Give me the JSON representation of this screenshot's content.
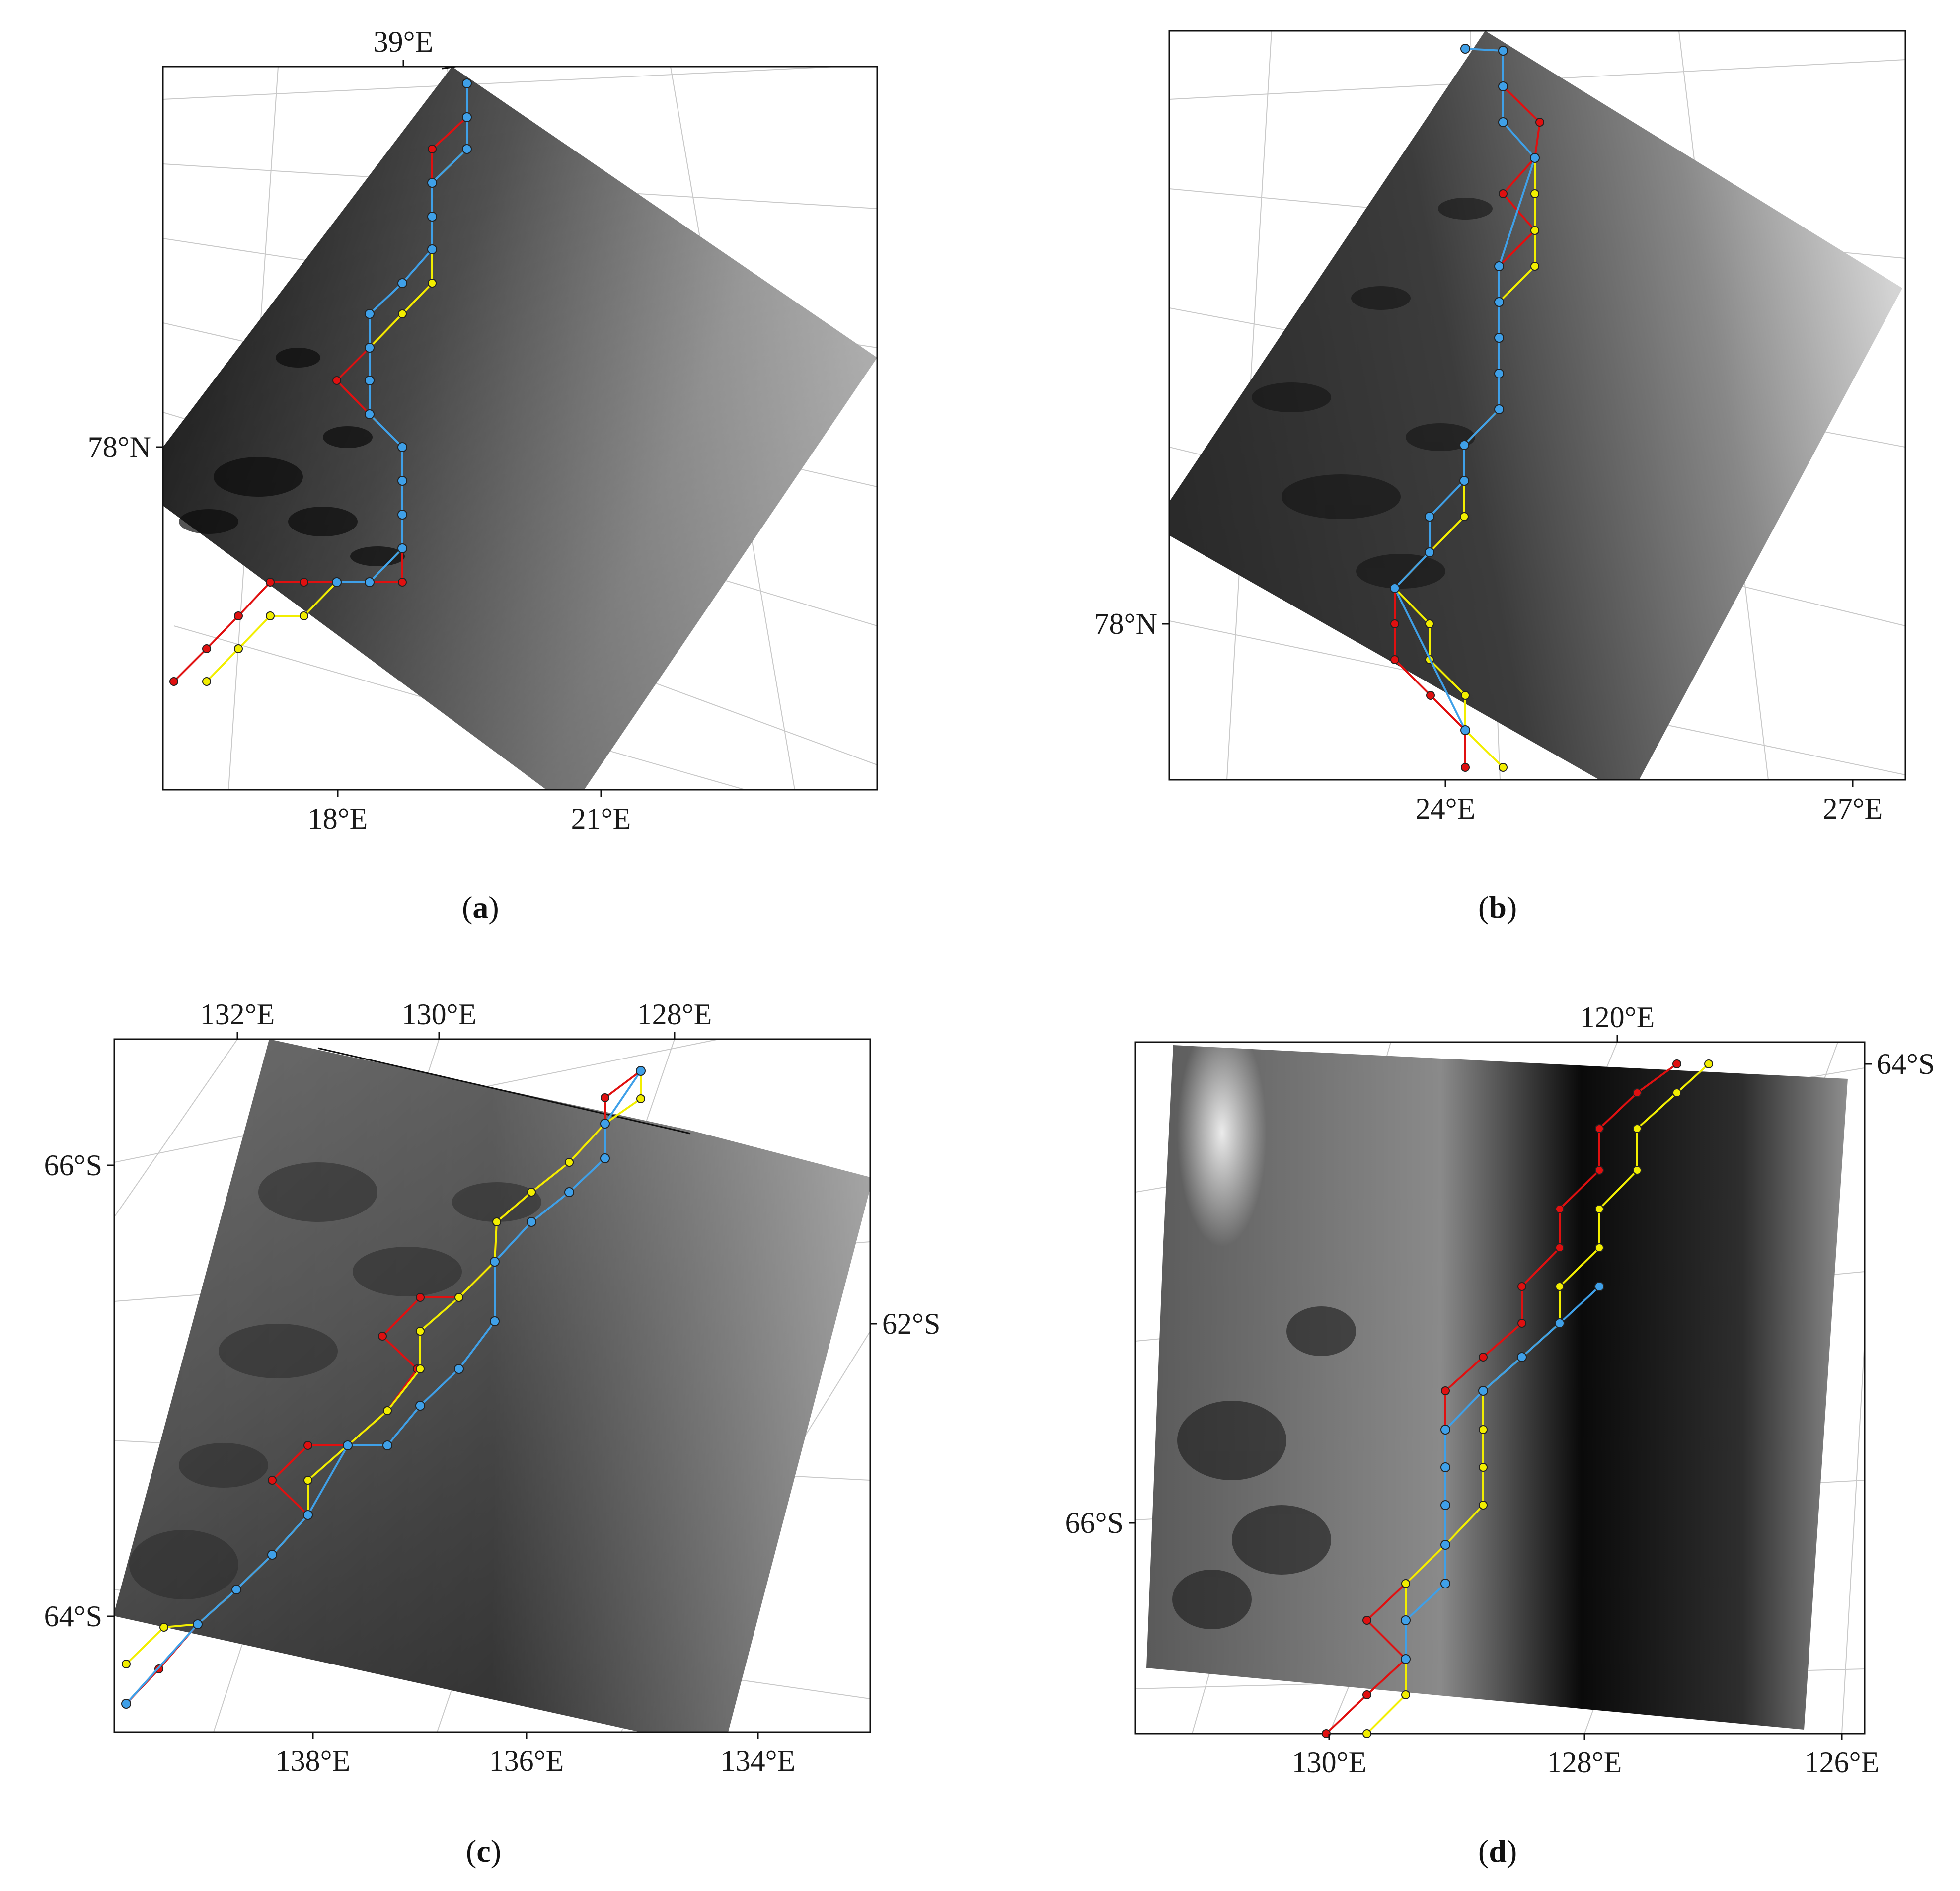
{
  "figure": {
    "panels": [
      {
        "id": "a",
        "caption_letter": "a",
        "ticks": {
          "top": [
            {
              "label": "39°E"
            }
          ],
          "left": [
            {
              "label": "78°N"
            }
          ],
          "bottom": [
            {
              "label": "18°E"
            },
            {
              "label": "21°E"
            }
          ],
          "right": []
        }
      },
      {
        "id": "b",
        "caption_letter": "b",
        "ticks": {
          "top": [],
          "left": [
            {
              "label": "78°N"
            }
          ],
          "bottom": [
            {
              "label": "24°E"
            },
            {
              "label": "27°E"
            }
          ],
          "right": []
        }
      },
      {
        "id": "c",
        "caption_letter": "c",
        "ticks": {
          "top": [
            {
              "label": "132°E"
            },
            {
              "label": "130°E"
            },
            {
              "label": "128°E"
            }
          ],
          "left": [
            {
              "label": "66°S"
            },
            {
              "label": "64°S"
            }
          ],
          "bottom": [
            {
              "label": "138°E"
            },
            {
              "label": "136°E"
            },
            {
              "label": "134°E"
            }
          ],
          "right": [
            {
              "label": "62°S"
            }
          ]
        }
      },
      {
        "id": "d",
        "caption_letter": "d",
        "ticks": {
          "top": [
            {
              "label": "120°E"
            }
          ],
          "left": [
            {
              "label": "66°S"
            }
          ],
          "bottom": [
            {
              "label": "130°E"
            },
            {
              "label": "128°E"
            },
            {
              "label": "126°E"
            }
          ],
          "right": [
            {
              "label": "64°S"
            }
          ]
        }
      }
    ],
    "colors": {
      "line_red": "#e01010",
      "line_yellow": "#f2ee00",
      "line_blue": "#3fa0e8",
      "marker_edge": "#222222",
      "graticule": "#c9c9c9",
      "frame": "#111111"
    }
  }
}
